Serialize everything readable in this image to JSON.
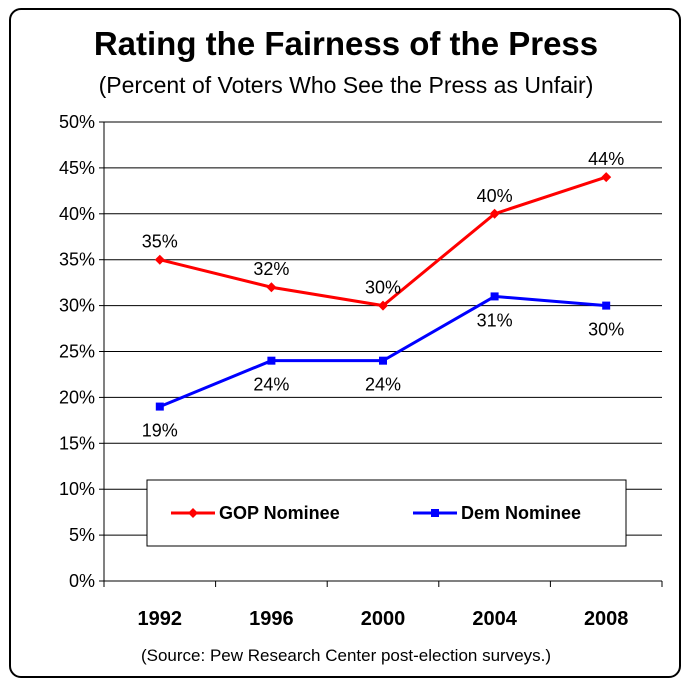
{
  "title": "Rating the Fairness of the Press",
  "subtitle": "(Percent of Voters Who See the Press as Unfair)",
  "source": "(Source: Pew Research Center post-election surveys.)",
  "chart_data": {
    "type": "line",
    "title": "Rating the Fairness of the Press",
    "subtitle": "(Percent of Voters Who See the Press as Unfair)",
    "categories": [
      "1992",
      "1996",
      "2000",
      "2004",
      "2008"
    ],
    "ylim": [
      0,
      50
    ],
    "yticks": [
      "0%",
      "5%",
      "10%",
      "15%",
      "20%",
      "25%",
      "30%",
      "35%",
      "40%",
      "45%",
      "50%"
    ],
    "grid": "horizontal",
    "legend": "bottom",
    "series": [
      {
        "name": "GOP Nominee",
        "color": "#ff0000",
        "marker": "diamond",
        "values": [
          35,
          32,
          30,
          40,
          44
        ],
        "labels": [
          "35%",
          "32%",
          "30%",
          "40%",
          "44%"
        ],
        "label_pos": "above"
      },
      {
        "name": "Dem Nominee",
        "color": "#0000ff",
        "marker": "square",
        "values": [
          19,
          24,
          24,
          31,
          30
        ],
        "labels": [
          "19%",
          "24%",
          "24%",
          "31%",
          "30%"
        ],
        "label_pos": "below"
      }
    ]
  }
}
